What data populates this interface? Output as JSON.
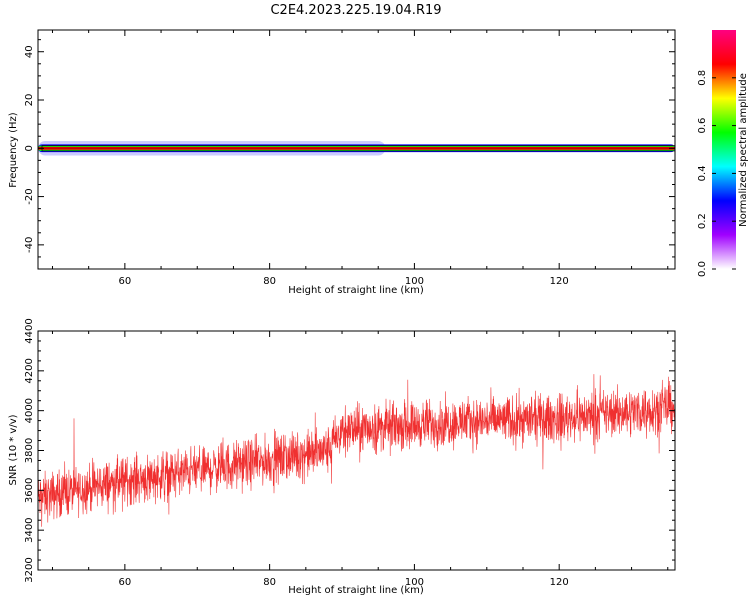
{
  "figure_title": "C2E4.2023.225.19.04.R19",
  "chart_data": [
    {
      "type": "heatmap",
      "title": "",
      "xlabel": "Height of straight line (km)",
      "ylabel": "Frequency (Hz)",
      "xlim": [
        48,
        136
      ],
      "ylim": [
        -50,
        49
      ],
      "x_ticks": [
        60,
        80,
        100,
        120
      ],
      "y_ticks": [
        -40,
        -20,
        0,
        20,
        40
      ],
      "colorbar": {
        "label": "Normalized spectral amplitude",
        "range": [
          0,
          1
        ],
        "ticks": [
          0.0,
          0.2,
          0.4,
          0.6,
          0.8
        ],
        "colormap": [
          "#ffffff",
          "#a000ff",
          "#0000ff",
          "#00ffff",
          "#00ff00",
          "#ffff00",
          "#ff0000",
          "#ff0080"
        ]
      },
      "bands": [
        {
          "frequency_halfwidth_hz": 3.0,
          "x_range": [
            48,
            96
          ],
          "amplitude": 0.05,
          "color": "#a0a0ff"
        },
        {
          "frequency_halfwidth_hz": 1.6,
          "x_range": [
            48,
            136
          ],
          "amplitude": 0.15,
          "color": "#0000ff"
        },
        {
          "frequency_halfwidth_hz": 1.1,
          "x_range": [
            48,
            136
          ],
          "amplitude": 0.45,
          "color": "#00ff00"
        },
        {
          "frequency_halfwidth_hz": 0.6,
          "x_range": [
            48,
            136
          ],
          "amplitude": 0.85,
          "color": "#ff0000"
        },
        {
          "frequency_halfwidth_hz": 0.25,
          "x_range": [
            100,
            136
          ],
          "amplitude": 0.98,
          "color": "#ff0080"
        }
      ],
      "peak_frequency_hz": 0
    },
    {
      "type": "line",
      "title": "",
      "xlabel": "Height of straight line (km)",
      "ylabel": "SNR (10 * v/v)",
      "xlim": [
        48,
        136
      ],
      "ylim": [
        3200,
        4400
      ],
      "x_ticks": [
        60,
        80,
        100,
        120
      ],
      "y_ticks": [
        3200,
        3400,
        3600,
        3800,
        4000,
        4200,
        4400
      ],
      "series": [
        {
          "color": "#f03030",
          "trend": {
            "x": [
              48,
              60,
              70,
              80,
              88,
              90,
              100,
              110,
              120,
              136
            ],
            "y": [
              3560,
              3650,
              3700,
              3750,
              3800,
              3900,
              3930,
              3950,
              3960,
              4020
            ]
          },
          "noise_amplitude": 110,
          "samples": 2600
        }
      ]
    }
  ]
}
